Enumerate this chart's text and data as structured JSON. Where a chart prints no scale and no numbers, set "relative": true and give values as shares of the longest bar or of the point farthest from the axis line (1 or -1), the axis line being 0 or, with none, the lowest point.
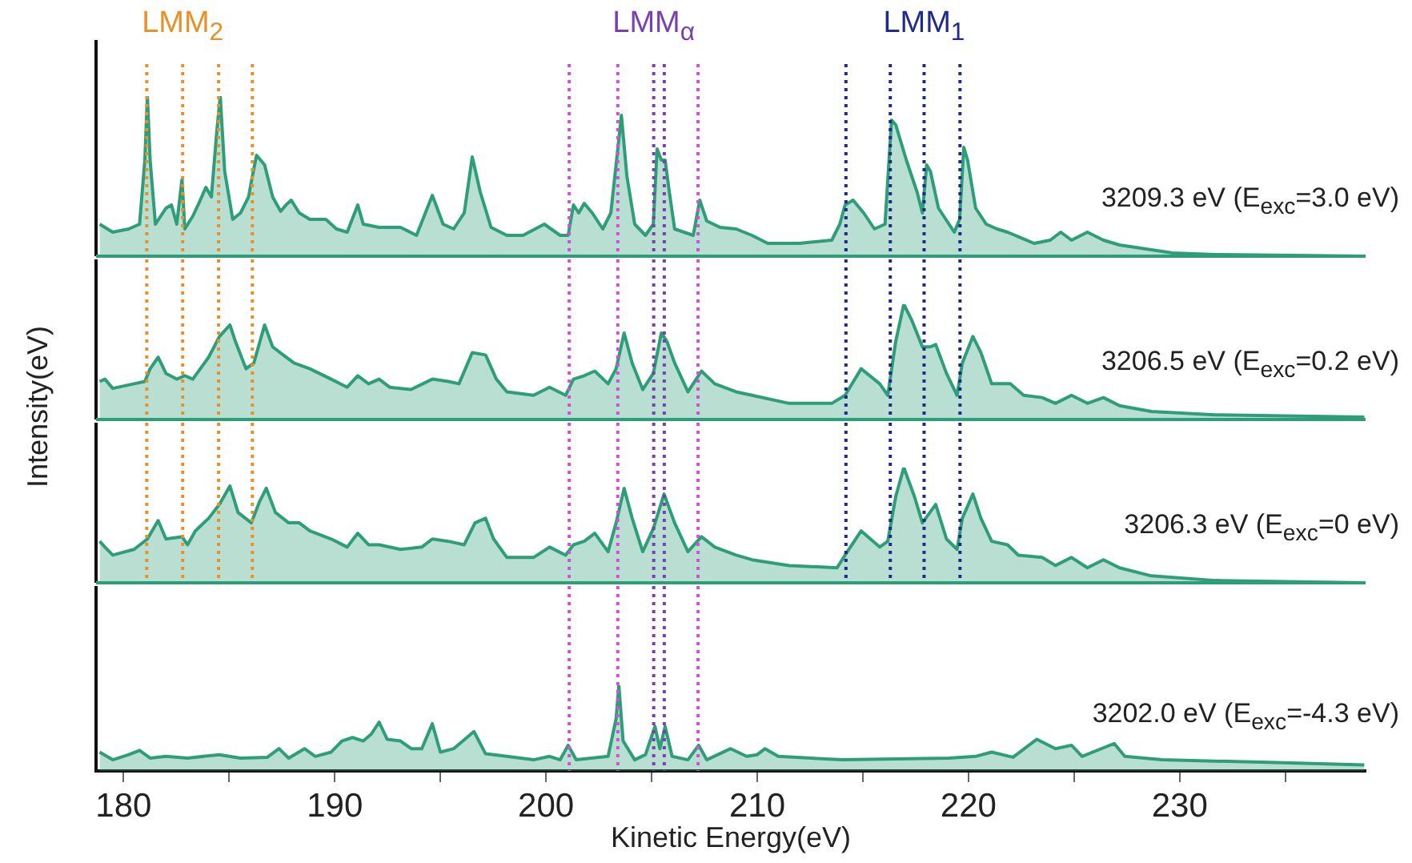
{
  "chart_data": [
    {
      "type": "area",
      "relative": true,
      "color": "#2e9e7a",
      "xlim": [
        178.7,
        238.8
      ],
      "tick_labels": false,
      "x": [
        178.87,
        179.49,
        180.25,
        180.76,
        181.01,
        181.13,
        181.26,
        181.51,
        182.01,
        182.27,
        182.52,
        182.77,
        182.9,
        183.28,
        183.53,
        183.9,
        184.16,
        184.41,
        184.58,
        184.79,
        185.17,
        185.54,
        185.92,
        186.1,
        186.3,
        186.68,
        187.06,
        187.44,
        187.69,
        187.94,
        188.32,
        188.82,
        189.58,
        190.08,
        190.59,
        191.09,
        191.35,
        192.1,
        193.11,
        193.87,
        194.62,
        195.13,
        195.63,
        196.13,
        196.51,
        196.89,
        197.4,
        198.15,
        198.91,
        199.92,
        200.67,
        201.05,
        201.3,
        201.55,
        201.81,
        202.19,
        202.69,
        203.07,
        203.4,
        203.57,
        203.83,
        204.2,
        204.71,
        205.08,
        205.26,
        205.46,
        205.64,
        205.84,
        206.09,
        206.97,
        207.28,
        207.61,
        208.24,
        209.0,
        209.75,
        210.5,
        212.0,
        213.53,
        213.91,
        214.16,
        214.54,
        215.04,
        215.55,
        216.05,
        216.36,
        216.56,
        217.06,
        217.57,
        217.82,
        218.02,
        218.2,
        218.58,
        219.33,
        219.58,
        219.78,
        219.96,
        220.34,
        220.84,
        221.35,
        221.85,
        223.11,
        223.87,
        224.37,
        224.88,
        225.63,
        226.39,
        227.15,
        228.66,
        229.67,
        231.68,
        238.74
      ],
      "values": [
        0.2,
        0.15,
        0.17,
        0.2,
        0.6,
        1,
        0.6,
        0.2,
        0.3,
        0.32,
        0.2,
        0.48,
        0.17,
        0.25,
        0.32,
        0.43,
        0.37,
        0.77,
        1,
        0.53,
        0.23,
        0.27,
        0.37,
        0.5,
        0.63,
        0.57,
        0.37,
        0.28,
        0.32,
        0.35,
        0.27,
        0.23,
        0.23,
        0.17,
        0.15,
        0.32,
        0.2,
        0.18,
        0.18,
        0.13,
        0.38,
        0.2,
        0.17,
        0.27,
        0.62,
        0.4,
        0.18,
        0.13,
        0.13,
        0.2,
        0.13,
        0.13,
        0.32,
        0.27,
        0.33,
        0.27,
        0.17,
        0.27,
        0.67,
        0.88,
        0.5,
        0.2,
        0.13,
        0.2,
        0.67,
        0.6,
        0.6,
        0.4,
        0.17,
        0.13,
        0.35,
        0.22,
        0.18,
        0.17,
        0.13,
        0.08,
        0.08,
        0.1,
        0.2,
        0.32,
        0.35,
        0.27,
        0.17,
        0.2,
        0.85,
        0.82,
        0.6,
        0.4,
        0.27,
        0.57,
        0.53,
        0.3,
        0.15,
        0.23,
        0.68,
        0.6,
        0.3,
        0.2,
        0.17,
        0.15,
        0.08,
        0.1,
        0.15,
        0.1,
        0.15,
        0.1,
        0.07,
        0.04,
        0.02,
        0.01,
        0
      ],
      "ref_lines": [
        {
          "axis": "x",
          "value": 181.1,
          "color": "#e8902a",
          "line_style": "dotted"
        },
        {
          "axis": "x",
          "value": 182.8,
          "color": "#e8902a",
          "line_style": "dotted",
          "label": "LMM$_{2}$"
        },
        {
          "axis": "x",
          "value": 184.5,
          "color": "#e8902a",
          "line_style": "dotted"
        },
        {
          "axis": "x",
          "value": 186.1,
          "color": "#e8902a",
          "line_style": "dotted"
        },
        {
          "axis": "x",
          "value": 201.1,
          "color": "#d24fd8",
          "line_style": "dotted"
        },
        {
          "axis": "x",
          "value": 203.4,
          "color": "#d24fd8",
          "line_style": "dotted"
        },
        {
          "axis": "x",
          "value": 205.1,
          "color": "#7a3fb0",
          "line_style": "dotted",
          "label": "LMM$_{α}$"
        },
        {
          "axis": "x",
          "value": 205.6,
          "color": "#7a3fb0",
          "line_style": "dotted"
        },
        {
          "axis": "x",
          "value": 207.2,
          "color": "#d24fd8",
          "line_style": "dotted"
        },
        {
          "axis": "x",
          "value": 214.2,
          "color": "#1f2a8a",
          "line_style": "dotted"
        },
        {
          "axis": "x",
          "value": 216.3,
          "color": "#1f2a8a",
          "line_style": "dotted"
        },
        {
          "axis": "x",
          "value": 217.9,
          "color": "#1f2a8a",
          "line_style": "dotted",
          "label": "LMM$_{1}$"
        },
        {
          "axis": "x",
          "value": 219.6,
          "color": "#1f2a8a",
          "line_style": "dotted"
        }
      ],
      "annotations": [
        "3209.3 eV (E$_{exc}$=3.0 eV)"
      ]
    },
    {
      "type": "area",
      "relative": true,
      "color": "#2e9e7a",
      "xlim": [
        178.7,
        238.8
      ],
      "tick_labels": false,
      "ylabel": "Intensity(eV)",
      "x": [
        178.87,
        179.12,
        179.49,
        180.5,
        181.01,
        181.26,
        181.64,
        182.01,
        182.52,
        182.9,
        183.28,
        184.03,
        184.54,
        185.04,
        185.29,
        185.8,
        186.17,
        186.68,
        187.06,
        187.56,
        188.07,
        188.82,
        189.83,
        190.59,
        191.09,
        191.6,
        192.1,
        192.6,
        193.61,
        194.62,
        195.38,
        195.88,
        196.51,
        197.14,
        197.65,
        198.15,
        199.41,
        200.17,
        200.93,
        201.3,
        201.81,
        202.31,
        202.94,
        203.32,
        203.7,
        204.08,
        204.58,
        205.08,
        205.46,
        205.72,
        206.09,
        206.72,
        207.36,
        207.99,
        209.0,
        209.75,
        211.51,
        213.53,
        214.16,
        214.92,
        215.8,
        216.18,
        216.56,
        216.94,
        217.32,
        217.82,
        218.2,
        218.45,
        218.96,
        219.46,
        219.71,
        220.21,
        220.59,
        221.1,
        221.98,
        222.61,
        223.49,
        224.12,
        224.88,
        225.63,
        226.39,
        227.15,
        228.66,
        231.68,
        238.74
      ],
      "values": [
        0.33,
        0.35,
        0.27,
        0.31,
        0.33,
        0.44,
        0.54,
        0.4,
        0.35,
        0.38,
        0.35,
        0.54,
        0.72,
        0.82,
        0.68,
        0.44,
        0.49,
        0.82,
        0.63,
        0.56,
        0.49,
        0.44,
        0.35,
        0.28,
        0.38,
        0.31,
        0.35,
        0.28,
        0.26,
        0.35,
        0.33,
        0.31,
        0.58,
        0.56,
        0.35,
        0.24,
        0.21,
        0.28,
        0.21,
        0.35,
        0.38,
        0.42,
        0.31,
        0.44,
        0.75,
        0.49,
        0.26,
        0.4,
        0.75,
        0.68,
        0.49,
        0.24,
        0.42,
        0.31,
        0.24,
        0.21,
        0.14,
        0.14,
        0.21,
        0.44,
        0.31,
        0.21,
        0.68,
        1,
        0.86,
        0.63,
        0.63,
        0.65,
        0.4,
        0.21,
        0.49,
        0.72,
        0.58,
        0.31,
        0.31,
        0.21,
        0.19,
        0.14,
        0.21,
        0.14,
        0.19,
        0.12,
        0.07,
        0.04,
        0.02
      ],
      "ref_lines": [
        {
          "axis": "x",
          "value": 181.1,
          "color": "#e8902a",
          "line_style": "dotted"
        },
        {
          "axis": "x",
          "value": 182.8,
          "color": "#e8902a",
          "line_style": "dotted"
        },
        {
          "axis": "x",
          "value": 184.5,
          "color": "#e8902a",
          "line_style": "dotted"
        },
        {
          "axis": "x",
          "value": 186.1,
          "color": "#e8902a",
          "line_style": "dotted"
        },
        {
          "axis": "x",
          "value": 201.1,
          "color": "#d24fd8",
          "line_style": "dotted"
        },
        {
          "axis": "x",
          "value": 203.4,
          "color": "#d24fd8",
          "line_style": "dotted"
        },
        {
          "axis": "x",
          "value": 205.1,
          "color": "#7a3fb0",
          "line_style": "dotted"
        },
        {
          "axis": "x",
          "value": 205.6,
          "color": "#7a3fb0",
          "line_style": "dotted"
        },
        {
          "axis": "x",
          "value": 207.2,
          "color": "#d24fd8",
          "line_style": "dotted"
        },
        {
          "axis": "x",
          "value": 214.2,
          "color": "#1f2a8a",
          "line_style": "dotted"
        },
        {
          "axis": "x",
          "value": 216.3,
          "color": "#1f2a8a",
          "line_style": "dotted"
        },
        {
          "axis": "x",
          "value": 217.9,
          "color": "#1f2a8a",
          "line_style": "dotted"
        },
        {
          "axis": "x",
          "value": 219.6,
          "color": "#1f2a8a",
          "line_style": "dotted"
        }
      ],
      "annotations": [
        "3206.5 eV (E$_{exc}$=0.2 eV)"
      ]
    },
    {
      "type": "area",
      "relative": true,
      "color": "#2e9e7a",
      "xlim": [
        178.7,
        238.8
      ],
      "tick_labels": false,
      "x": [
        178.87,
        179.12,
        179.49,
        180.5,
        181.13,
        181.64,
        182.01,
        182.77,
        183.03,
        183.4,
        184.03,
        184.54,
        185.04,
        185.42,
        186.05,
        186.43,
        186.76,
        187.19,
        187.82,
        188.32,
        188.82,
        189.83,
        190.59,
        191.09,
        191.6,
        192.1,
        193.11,
        194.12,
        194.62,
        195.38,
        196.13,
        196.64,
        197.14,
        197.52,
        198.15,
        199.41,
        200.17,
        200.93,
        201.3,
        201.81,
        202.31,
        202.94,
        203.32,
        203.7,
        204.08,
        204.58,
        205.08,
        205.59,
        206.09,
        206.72,
        207.36,
        207.99,
        209.0,
        209.75,
        211.51,
        213.78,
        214.16,
        214.92,
        215.8,
        216.18,
        216.56,
        216.94,
        217.44,
        217.82,
        218.45,
        218.96,
        219.46,
        219.71,
        220.21,
        220.59,
        221.1,
        221.85,
        222.36,
        223.49,
        224.12,
        224.88,
        225.63,
        226.39,
        227.15,
        228.66,
        231.68,
        238.74
      ],
      "values": [
        0.36,
        0.31,
        0.24,
        0.29,
        0.38,
        0.54,
        0.38,
        0.4,
        0.33,
        0.45,
        0.56,
        0.68,
        0.84,
        0.61,
        0.52,
        0.7,
        0.82,
        0.61,
        0.52,
        0.52,
        0.45,
        0.38,
        0.31,
        0.43,
        0.33,
        0.33,
        0.29,
        0.31,
        0.38,
        0.36,
        0.33,
        0.52,
        0.56,
        0.38,
        0.22,
        0.22,
        0.31,
        0.24,
        0.33,
        0.36,
        0.43,
        0.27,
        0.52,
        0.82,
        0.56,
        0.27,
        0.47,
        0.77,
        0.52,
        0.27,
        0.4,
        0.31,
        0.24,
        0.2,
        0.15,
        0.13,
        0.24,
        0.45,
        0.31,
        0.36,
        0.75,
        1,
        0.75,
        0.52,
        0.68,
        0.38,
        0.29,
        0.56,
        0.77,
        0.56,
        0.36,
        0.33,
        0.24,
        0.22,
        0.15,
        0.22,
        0.13,
        0.2,
        0.13,
        0.06,
        0.02,
        0
      ],
      "ref_lines": [
        {
          "axis": "x",
          "value": 181.1,
          "color": "#e8902a",
          "line_style": "dotted"
        },
        {
          "axis": "x",
          "value": 182.8,
          "color": "#e8902a",
          "line_style": "dotted"
        },
        {
          "axis": "x",
          "value": 184.5,
          "color": "#e8902a",
          "line_style": "dotted"
        },
        {
          "axis": "x",
          "value": 186.1,
          "color": "#e8902a",
          "line_style": "dotted"
        },
        {
          "axis": "x",
          "value": 201.1,
          "color": "#d24fd8",
          "line_style": "dotted"
        },
        {
          "axis": "x",
          "value": 203.4,
          "color": "#d24fd8",
          "line_style": "dotted"
        },
        {
          "axis": "x",
          "value": 205.1,
          "color": "#7a3fb0",
          "line_style": "dotted"
        },
        {
          "axis": "x",
          "value": 205.6,
          "color": "#7a3fb0",
          "line_style": "dotted"
        },
        {
          "axis": "x",
          "value": 207.2,
          "color": "#d24fd8",
          "line_style": "dotted"
        },
        {
          "axis": "x",
          "value": 214.2,
          "color": "#1f2a8a",
          "line_style": "dotted"
        },
        {
          "axis": "x",
          "value": 216.3,
          "color": "#1f2a8a",
          "line_style": "dotted"
        },
        {
          "axis": "x",
          "value": 217.9,
          "color": "#1f2a8a",
          "line_style": "dotted"
        },
        {
          "axis": "x",
          "value": 219.6,
          "color": "#1f2a8a",
          "line_style": "dotted"
        }
      ],
      "annotations": [
        "3206.3 eV (E$_{exc}$=0 eV)"
      ]
    },
    {
      "type": "area",
      "relative": true,
      "color": "#2e9e7a",
      "xlim": [
        178.7,
        238.8
      ],
      "tick_labels": "x",
      "xlabel": "Kinetic Energy(eV)",
      "xticks": [
        180,
        {
          "value": 185,
          "label": null
        },
        190,
        {
          "value": 195,
          "label": null
        },
        200,
        {
          "value": 205,
          "label": null
        },
        210,
        {
          "value": 215,
          "label": null
        },
        220,
        {
          "value": 225,
          "label": null
        },
        230,
        {
          "value": 235,
          "label": null
        }
      ],
      "x": [
        178.87,
        179.49,
        180.25,
        180.76,
        181.26,
        182.01,
        183.03,
        184.54,
        185.54,
        186.81,
        187.36,
        187.82,
        188.57,
        189.08,
        189.83,
        190.34,
        190.84,
        191.35,
        191.73,
        192.1,
        192.48,
        193.11,
        193.62,
        194.12,
        194.62,
        195.0,
        195.63,
        196.59,
        197.14,
        198.15,
        199.41,
        200.17,
        200.67,
        201.05,
        201.43,
        202.94,
        203.32,
        203.45,
        203.65,
        204.2,
        204.71,
        205.16,
        205.39,
        205.64,
        205.97,
        206.72,
        207.23,
        207.61,
        208.74,
        209.5,
        210.0,
        210.37,
        211.0,
        214.03,
        219.08,
        220.34,
        221.1,
        222.11,
        223.24,
        224.12,
        224.88,
        225.38,
        226.9,
        227.4,
        229.16,
        234.21,
        238.74
      ],
      "values": [
        0.22,
        0.13,
        0.19,
        0.24,
        0.15,
        0.17,
        0.15,
        0.19,
        0.15,
        0.16,
        0.26,
        0.15,
        0.26,
        0.17,
        0.22,
        0.35,
        0.39,
        0.35,
        0.43,
        0.57,
        0.37,
        0.35,
        0.26,
        0.26,
        0.55,
        0.22,
        0.26,
        0.46,
        0.2,
        0.17,
        0.13,
        0.17,
        0.13,
        0.3,
        0.13,
        0.17,
        0.61,
        1,
        0.35,
        0.13,
        0.19,
        0.52,
        0.26,
        0.52,
        0.17,
        0.13,
        0.3,
        0.13,
        0.26,
        0.17,
        0.19,
        0.26,
        0.17,
        0.13,
        0.15,
        0.17,
        0.22,
        0.16,
        0.37,
        0.26,
        0.3,
        0.17,
        0.32,
        0.17,
        0.13,
        0.1,
        0.07
      ],
      "ref_lines": [
        {
          "axis": "x",
          "value": 201.1,
          "color": "#d24fd8",
          "line_style": "dotted"
        },
        {
          "axis": "x",
          "value": 203.4,
          "color": "#d24fd8",
          "line_style": "dotted"
        },
        {
          "axis": "x",
          "value": 205.1,
          "color": "#7a3fb0",
          "line_style": "dotted"
        },
        {
          "axis": "x",
          "value": 205.6,
          "color": "#7a3fb0",
          "line_style": "dotted"
        },
        {
          "axis": "x",
          "value": 207.2,
          "color": "#d24fd8",
          "line_style": "dotted"
        }
      ],
      "annotations": [
        "3202.0 eV (E$_{exc}$=-4.3 eV)"
      ]
    }
  ]
}
